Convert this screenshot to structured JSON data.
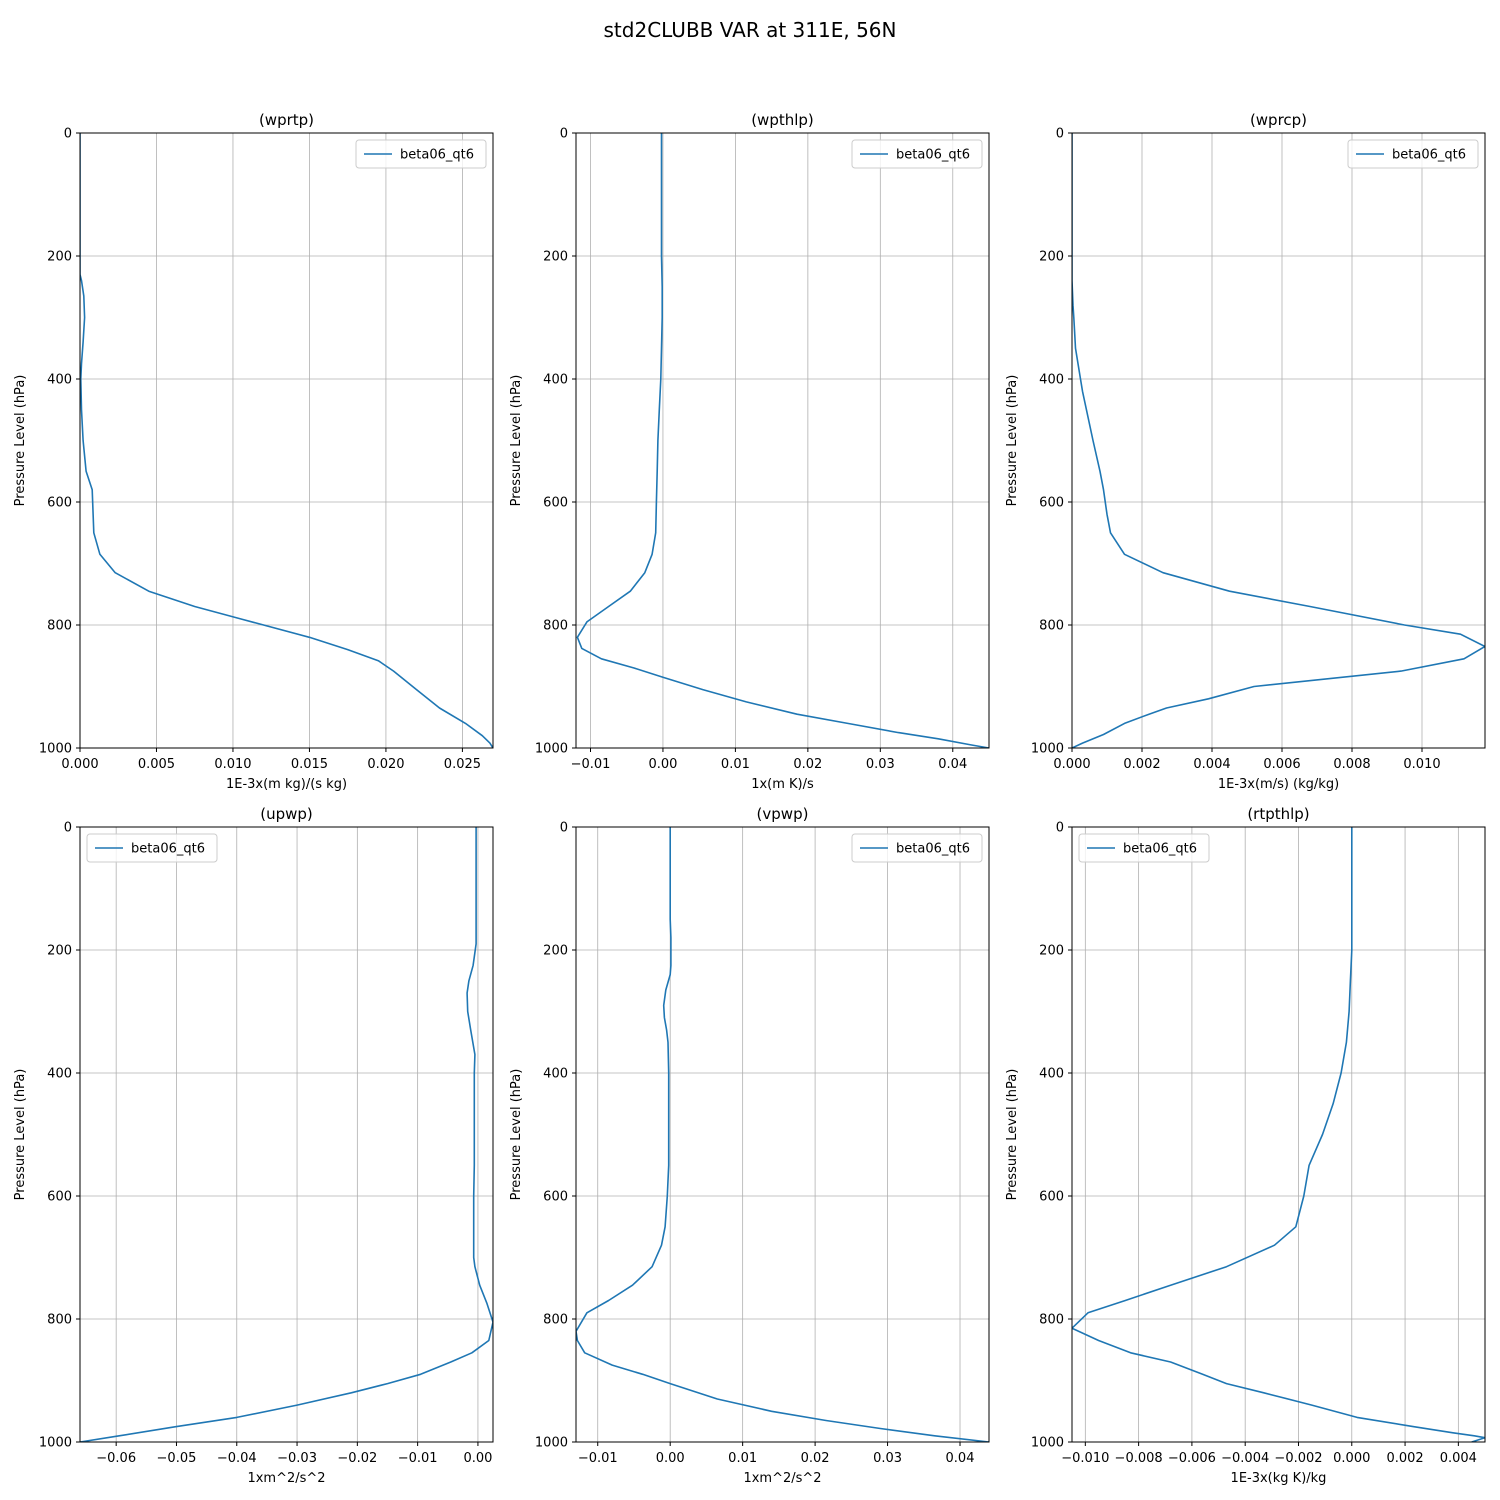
{
  "figure": {
    "title": "std2CLUBB VAR at 311E, 56N"
  },
  "chart_data": [
    {
      "type": "line",
      "title": "(wprtp)",
      "xlabel": "1E-3x(m kg)/(s kg)",
      "ylabel": "Pressure Level (hPa)",
      "xlim": [
        0.0,
        0.027
      ],
      "ylim": [
        1000,
        0
      ],
      "xticks": [
        0.0,
        0.005,
        0.01,
        0.015,
        0.02,
        0.025
      ],
      "xtick_labels": [
        "0.000",
        "0.005",
        "0.010",
        "0.015",
        "0.020",
        "0.025"
      ],
      "yticks": [
        0,
        200,
        400,
        600,
        800,
        1000
      ],
      "grid": true,
      "legend": "upper right",
      "series": [
        {
          "name": "beta06_qt6",
          "x": [
            0.0,
            0.0,
            0.0,
            0.0,
            0.0,
            0.0,
            0.0,
            0.0,
            0.0,
            0.0,
            0.0,
            0.0,
            0.0,
            0.0,
            0.0,
            0.0,
            0.0001,
            0.00025,
            0.0003,
            0.0002,
            0.0001,
            5e-05,
            0.0001,
            0.0002,
            0.0004,
            0.0008,
            0.0009,
            0.0013,
            0.0023,
            0.0045,
            0.0075,
            0.0105,
            0.015,
            0.0175,
            0.0195,
            0.0205,
            0.022,
            0.0235,
            0.0252,
            0.0263,
            0.0268,
            0.027
          ],
          "y": [
            0,
            20,
            40,
            60,
            80,
            100,
            120,
            140,
            160,
            180,
            190,
            195,
            200,
            210,
            220,
            230,
            240,
            265,
            300,
            340,
            375,
            400,
            450,
            500,
            550,
            580,
            650,
            685,
            715,
            745,
            770,
            790,
            820,
            840,
            858,
            875,
            905,
            935,
            960,
            980,
            992,
            1000
          ]
        }
      ]
    },
    {
      "type": "line",
      "title": "(wpthlp)",
      "xlabel": "1x(m K)/s",
      "ylabel": "Pressure Level (hPa)",
      "xlim": [
        -0.012,
        0.045
      ],
      "ylim": [
        1000,
        0
      ],
      "xticks": [
        -0.01,
        0.0,
        0.01,
        0.02,
        0.03,
        0.04
      ],
      "xtick_labels": [
        "−0.01",
        "0.00",
        "0.01",
        "0.02",
        "0.03",
        "0.04"
      ],
      "yticks": [
        0,
        200,
        400,
        600,
        800,
        1000
      ],
      "grid": true,
      "legend": "upper right",
      "series": [
        {
          "name": "beta06_qt6",
          "x": [
            -0.0002,
            -0.0002,
            -0.0002,
            -0.0002,
            -0.0001,
            -0.0001,
            -0.0002,
            -0.0003,
            -0.0005,
            -0.0007,
            -0.0008,
            -0.0009,
            -0.001,
            -0.0015,
            -0.0025,
            -0.0045,
            -0.0075,
            -0.0105,
            -0.0118,
            -0.0112,
            -0.0085,
            -0.004,
            0.0,
            0.0055,
            0.0115,
            0.0185,
            0.0255,
            0.0325,
            0.038,
            0.0425,
            0.045
          ],
          "y": [
            0,
            100,
            150,
            200,
            250,
            300,
            350,
            400,
            450,
            500,
            550,
            600,
            650,
            685,
            715,
            745,
            770,
            795,
            820,
            838,
            855,
            870,
            885,
            905,
            925,
            945,
            960,
            975,
            985,
            995,
            1000
          ]
        }
      ]
    },
    {
      "type": "line",
      "title": "(wprcp)",
      "xlabel": "1E-3x(m/s) (kg/kg)",
      "ylabel": "Pressure Level (hPa)",
      "xlim": [
        0.0,
        0.0118
      ],
      "ylim": [
        1000,
        0
      ],
      "xticks": [
        0.0,
        0.002,
        0.004,
        0.006,
        0.008,
        0.01
      ],
      "xtick_labels": [
        "0.000",
        "0.002",
        "0.004",
        "0.006",
        "0.008",
        "0.010"
      ],
      "yticks": [
        0,
        200,
        400,
        600,
        800,
        1000
      ],
      "grid": true,
      "legend": "upper right",
      "series": [
        {
          "name": "beta06_qt6",
          "x": [
            0.0,
            0.0,
            0.0,
            0.0,
            3e-05,
            5e-05,
            7e-05,
            0.0001,
            0.0003,
            0.0006,
            0.0008,
            0.0009,
            0.001,
            0.0011,
            0.0015,
            0.0026,
            0.0045,
            0.0068,
            0.0095,
            0.0111,
            0.0118,
            0.0112,
            0.0094,
            0.0052,
            0.0039,
            0.0027,
            0.0022,
            0.0015,
            0.0009,
            0.0003,
            0.0
          ],
          "y": [
            0,
            100,
            200,
            240,
            280,
            300,
            320,
            350,
            420,
            500,
            550,
            580,
            620,
            650,
            685,
            715,
            745,
            770,
            800,
            815,
            835,
            855,
            875,
            900,
            920,
            935,
            945,
            960,
            978,
            992,
            1000
          ]
        }
      ]
    },
    {
      "type": "line",
      "title": "(upwp)",
      "xlabel": "1xm^2/s^2",
      "ylabel": "Pressure Level (hPa)",
      "xlim": [
        -0.066,
        0.0025
      ],
      "ylim": [
        1000,
        0
      ],
      "xticks": [
        -0.06,
        -0.05,
        -0.04,
        -0.03,
        -0.02,
        -0.01,
        0.0
      ],
      "xtick_labels": [
        "−0.06",
        "−0.05",
        "−0.04",
        "−0.03",
        "−0.02",
        "−0.01",
        "0.00"
      ],
      "yticks": [
        0,
        200,
        400,
        600,
        800,
        1000
      ],
      "grid": true,
      "legend": "upper left",
      "series": [
        {
          "name": "beta06_qt6",
          "x": [
            -0.0003,
            -0.0003,
            -0.0003,
            -0.0003,
            -0.0003,
            -0.0003,
            -0.0008,
            -0.0015,
            -0.0018,
            -0.0017,
            -0.0012,
            -0.0005,
            -0.0006,
            -0.0006,
            -0.0006,
            -0.0006,
            -0.0007,
            -0.0007,
            -0.0007,
            -0.0005,
            0.0003,
            0.0015,
            0.0025,
            0.0018,
            -0.001,
            -0.0045,
            -0.0095,
            -0.015,
            -0.021,
            -0.03,
            -0.04,
            -0.05,
            -0.0595,
            -0.066
          ],
          "y": [
            0,
            50,
            100,
            150,
            180,
            190,
            225,
            250,
            270,
            300,
            330,
            370,
            400,
            450,
            500,
            550,
            600,
            650,
            700,
            715,
            745,
            775,
            805,
            835,
            855,
            870,
            890,
            905,
            920,
            940,
            960,
            975,
            990,
            1000
          ]
        }
      ]
    },
    {
      "type": "line",
      "title": "(vpwp)",
      "xlabel": "1xm^2/s^2",
      "ylabel": "Pressure Level (hPa)",
      "xlim": [
        -0.013,
        0.044
      ],
      "ylim": [
        1000,
        0
      ],
      "xticks": [
        -0.01,
        0.0,
        0.01,
        0.02,
        0.03,
        0.04
      ],
      "xtick_labels": [
        "−0.01",
        "0.00",
        "0.01",
        "0.02",
        "0.03",
        "0.04"
      ],
      "yticks": [
        0,
        200,
        400,
        600,
        800,
        1000
      ],
      "grid": true,
      "legend": "upper right",
      "series": [
        {
          "name": "beta06_qt6",
          "x": [
            0.0,
            0.0,
            0.0,
            0.0,
            0.0001,
            0.0001,
            0.0,
            -0.0006,
            -0.0009,
            -0.0008,
            -0.0005,
            -0.0003,
            -0.0002,
            -0.0002,
            -0.0002,
            -0.0002,
            -0.0004,
            -0.0007,
            -0.0012,
            -0.0025,
            -0.0052,
            -0.0085,
            -0.0115,
            -0.013,
            -0.0128,
            -0.0118,
            -0.008,
            -0.0038,
            0.0,
            0.0065,
            0.014,
            0.0215,
            0.029,
            0.0365,
            0.044
          ],
          "y": [
            0,
            50,
            100,
            150,
            180,
            225,
            240,
            265,
            290,
            310,
            330,
            350,
            400,
            450,
            500,
            550,
            600,
            650,
            680,
            715,
            745,
            770,
            790,
            820,
            835,
            855,
            875,
            890,
            905,
            930,
            950,
            965,
            978,
            990,
            1000
          ]
        }
      ]
    },
    {
      "type": "line",
      "title": "(rtpthlp)",
      "xlabel": "1E-3x(kg K)/kg",
      "ylabel": "Pressure Level (hPa)",
      "xlim": [
        -0.0105,
        0.005
      ],
      "ylim": [
        1000,
        0
      ],
      "xticks": [
        -0.01,
        -0.008,
        -0.006,
        -0.004,
        -0.002,
        0.0,
        0.002,
        0.004
      ],
      "xtick_labels": [
        "−0.010",
        "−0.008",
        "−0.006",
        "−0.004",
        "−0.002",
        "0.000",
        "0.002",
        "0.004"
      ],
      "yticks": [
        0,
        200,
        400,
        600,
        800,
        1000
      ],
      "grid": true,
      "legend": "upper left",
      "series": [
        {
          "name": "beta06_qt6",
          "x": [
            0.0,
            0.0,
            0.0,
            0.0,
            -5e-05,
            -0.0001,
            -0.0002,
            -0.0004,
            -0.0007,
            -0.0011,
            -0.0016,
            -0.0018,
            -0.0021,
            -0.0029,
            -0.0047,
            -0.0068,
            -0.0085,
            -0.0099,
            -0.0105,
            -0.0095,
            -0.0083,
            -0.0068,
            -0.0056,
            -0.0047,
            -0.0033,
            -0.0015,
            0.0002,
            0.0023,
            0.0038,
            0.0046,
            0.005,
            0.0045
          ],
          "y": [
            0,
            100,
            150,
            200,
            250,
            300,
            350,
            400,
            450,
            500,
            550,
            600,
            650,
            680,
            715,
            745,
            770,
            790,
            815,
            835,
            855,
            870,
            890,
            905,
            920,
            940,
            960,
            975,
            985,
            990,
            993,
            1000
          ]
        }
      ]
    }
  ]
}
